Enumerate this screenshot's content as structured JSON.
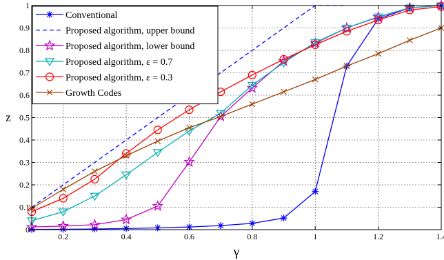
{
  "chart_data": {
    "type": "line",
    "xlabel": "γ",
    "ylabel": "z",
    "xlim": [
      0.1,
      1.4
    ],
    "ylim": [
      0,
      1
    ],
    "x_ticks": [
      0.2,
      0.4,
      0.6,
      0.8,
      1,
      1.2,
      1.4
    ],
    "y_ticks": [
      0,
      0.1,
      0.2,
      0.3,
      0.4,
      0.5,
      0.6,
      0.7,
      0.8,
      0.9,
      1
    ],
    "x_tick_labels": [
      "0.2",
      "0.4",
      "0.6",
      "0.8",
      "1",
      "1.2",
      "1.4"
    ],
    "y_tick_labels": [
      "0",
      "0.1",
      "0.2",
      "0.3",
      "0.4",
      "0.5",
      "0.6",
      "0.7",
      "0.8",
      "0.9",
      "1"
    ],
    "grid": true,
    "legend_position": "top-left",
    "series": [
      {
        "name": "Conventional",
        "color": "#0000ff",
        "marker": "asterisk",
        "dash": "solid",
        "x": [
          0.1,
          0.2,
          0.3,
          0.4,
          0.5,
          0.6,
          0.7,
          0.8,
          0.9,
          1.0,
          1.1,
          1.2,
          1.3,
          1.4
        ],
        "y": [
          0.001,
          0.002,
          0.003,
          0.005,
          0.008,
          0.012,
          0.018,
          0.028,
          0.052,
          0.17,
          0.73,
          0.94,
          0.99,
          1.0
        ]
      },
      {
        "name": "Proposed algorithm, upper bound",
        "color": "#0000ff",
        "marker": "none",
        "dash": "dashed",
        "x": [
          0.1,
          1.0,
          1.1
        ],
        "y": [
          0.1,
          1.0,
          1.0
        ]
      },
      {
        "name": "Proposed algorithm, lower bound",
        "color": "#c000c0",
        "marker": "star",
        "dash": "solid",
        "x": [
          0.1,
          0.2,
          0.3,
          0.4,
          0.5,
          0.6,
          0.7,
          0.8,
          0.9,
          1.0,
          1.1,
          1.2,
          1.3,
          1.4
        ],
        "y": [
          0.012,
          0.016,
          0.022,
          0.045,
          0.105,
          0.302,
          0.505,
          0.632,
          0.752,
          0.832,
          0.9,
          0.948,
          0.99,
          1.0
        ]
      },
      {
        "name": "Proposed algorithm, ε = 0.7",
        "color": "#00b0b0",
        "marker": "triangle-down",
        "dash": "solid",
        "x": [
          0.1,
          0.2,
          0.3,
          0.4,
          0.5,
          0.6,
          0.7,
          0.8,
          0.9,
          1.0,
          1.1,
          1.2,
          1.3,
          1.4
        ],
        "y": [
          0.04,
          0.08,
          0.15,
          0.245,
          0.345,
          0.44,
          0.52,
          0.645,
          0.745,
          0.835,
          0.9,
          0.95,
          0.99,
          1.0
        ]
      },
      {
        "name": "Proposed algorithm, ε = 0.3",
        "color": "#ff0000",
        "marker": "circle",
        "dash": "solid",
        "x": [
          0.1,
          0.2,
          0.3,
          0.4,
          0.5,
          0.6,
          0.7,
          0.8,
          0.9,
          1.0,
          1.1,
          1.2,
          1.3,
          1.4
        ],
        "y": [
          0.08,
          0.14,
          0.225,
          0.34,
          0.445,
          0.535,
          0.615,
          0.69,
          0.76,
          0.825,
          0.885,
          0.935,
          0.98,
          0.995
        ]
      },
      {
        "name": "Growth Codes",
        "color": "#a04000",
        "marker": "x",
        "dash": "solid",
        "x": [
          0.1,
          0.2,
          0.3,
          0.4,
          0.5,
          0.6,
          0.7,
          0.8,
          0.9,
          1.0,
          1.1,
          1.2,
          1.3,
          1.4
        ],
        "y": [
          0.095,
          0.18,
          0.26,
          0.33,
          0.395,
          0.455,
          0.505,
          0.56,
          0.615,
          0.67,
          0.73,
          0.785,
          0.845,
          0.9
        ]
      }
    ]
  }
}
